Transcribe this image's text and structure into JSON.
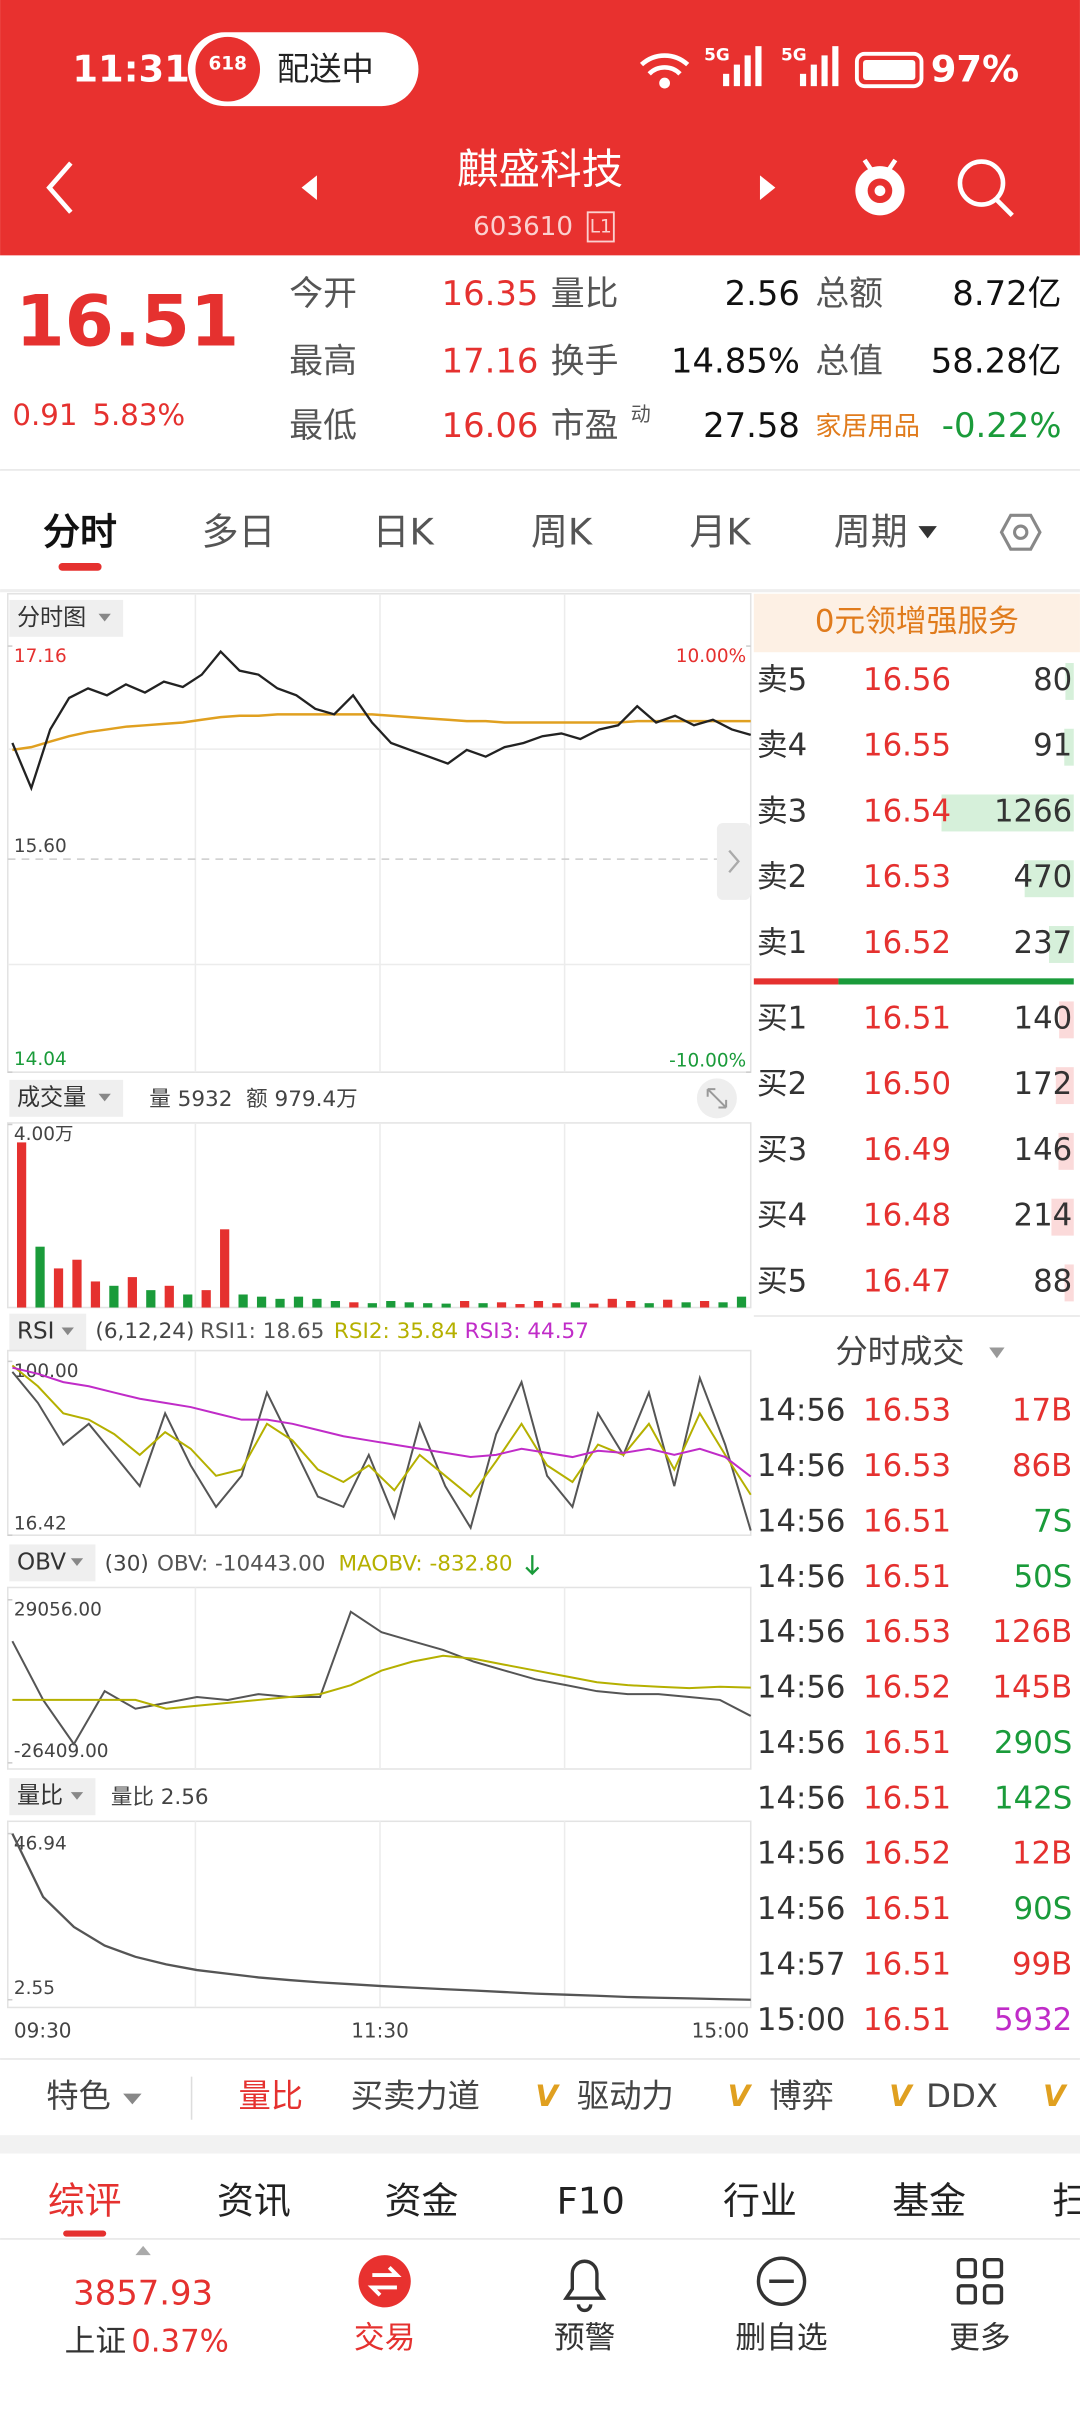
{
  "status_bar": {
    "time": "11:31",
    "badge_icon": "618",
    "badge": "配送中",
    "network": [
      "5G",
      "5G"
    ],
    "battery": "97%"
  },
  "header": {
    "name": "麒盛科技",
    "code": "603610",
    "level": "L1"
  },
  "quote": {
    "price": "16.51",
    "change": "0.91",
    "change_pct": "5.83%",
    "stats": [
      [
        {
          "label": "今开",
          "value": "16.35"
        },
        {
          "label": "量比",
          "value": "2.56"
        },
        {
          "label": "总额",
          "value": "8.72亿"
        }
      ],
      [
        {
          "label": "最高",
          "value": "17.16"
        },
        {
          "label": "换手",
          "value": "14.85%"
        },
        {
          "label": "总值",
          "value": "58.28亿"
        }
      ],
      [
        {
          "label": "最低",
          "value": "16.06"
        },
        {
          "label": "市盈",
          "sup": "动",
          "value": "27.58"
        },
        {
          "label": "家居用品",
          "value": "-0.22%"
        }
      ]
    ]
  },
  "tabs": [
    "分时",
    "多日",
    "日K",
    "周K",
    "月K",
    "周期"
  ],
  "promo": "0元领增强服务",
  "order_book": {
    "asks": [
      {
        "label": "卖5",
        "price": "16.56",
        "volume": 80
      },
      {
        "label": "卖4",
        "price": "16.55",
        "volume": 91
      },
      {
        "label": "卖3",
        "price": "16.54",
        "volume": 1266
      },
      {
        "label": "卖2",
        "price": "16.53",
        "volume": 470
      },
      {
        "label": "卖1",
        "price": "16.52",
        "volume": 237
      }
    ],
    "bids": [
      {
        "label": "买1",
        "price": "16.51",
        "volume": 140
      },
      {
        "label": "买2",
        "price": "16.50",
        "volume": 172
      },
      {
        "label": "买3",
        "price": "16.49",
        "volume": 146
      },
      {
        "label": "买4",
        "price": "16.48",
        "volume": 214
      },
      {
        "label": "买5",
        "price": "16.47",
        "volume": 88
      }
    ]
  },
  "trades": {
    "title": "分时成交",
    "rows": [
      {
        "time": "14:56",
        "price": "16.53",
        "volume": "17B"
      },
      {
        "time": "14:56",
        "price": "16.53",
        "volume": "86B"
      },
      {
        "time": "14:56",
        "price": "16.51",
        "volume": "7S"
      },
      {
        "time": "14:56",
        "price": "16.51",
        "volume": "50S"
      },
      {
        "time": "14:56",
        "price": "16.53",
        "volume": "126B"
      },
      {
        "time": "14:56",
        "price": "16.52",
        "volume": "145B"
      },
      {
        "time": "14:56",
        "price": "16.51",
        "volume": "290S"
      },
      {
        "time": "14:56",
        "price": "16.51",
        "volume": "142S"
      },
      {
        "time": "14:56",
        "price": "16.52",
        "volume": "12B"
      },
      {
        "time": "14:56",
        "price": "16.51",
        "volume": "90S"
      },
      {
        "time": "14:57",
        "price": "16.51",
        "volume": "99B"
      },
      {
        "time": "15:00",
        "price": "16.51",
        "volume": "5932"
      }
    ]
  },
  "intraday": {
    "price": {
      "chip": "分时图",
      "ylim": [
        14.04,
        17.16
      ],
      "yticks": [
        14.04,
        {
          "value": 15.6,
          "label": "15.60"
        },
        17.16
      ],
      "y2lim": [
        -10,
        10
      ],
      "y2ticks": [
        {
          "value": -10,
          "label": "-10.00%"
        },
        {
          "value": 10,
          "label": "10.00%"
        }
      ],
      "values": [
        16.45,
        16.12,
        16.55,
        16.78,
        16.85,
        16.8,
        16.88,
        16.82,
        16.9,
        16.86,
        16.95,
        17.12,
        16.98,
        16.95,
        16.85,
        16.8,
        16.7,
        16.66,
        16.8,
        16.6,
        16.45,
        16.4,
        16.35,
        16.3,
        16.4,
        16.35,
        16.42,
        16.45,
        16.5,
        16.52,
        16.48,
        16.55,
        16.58,
        16.72,
        16.6,
        16.65,
        16.58,
        16.62,
        16.55,
        16.51
      ],
      "avg": [
        16.4,
        16.42,
        16.46,
        16.5,
        16.53,
        16.55,
        16.57,
        16.58,
        16.59,
        16.6,
        16.62,
        16.64,
        16.65,
        16.65,
        16.66,
        16.66,
        16.66,
        16.66,
        16.66,
        16.66,
        16.65,
        16.64,
        16.63,
        16.62,
        16.61,
        16.61,
        16.6,
        16.6,
        16.6,
        16.6,
        16.6,
        16.6,
        16.6,
        16.61,
        16.61,
        16.61,
        16.61,
        16.61,
        16.61,
        16.61
      ]
    },
    "volume": {
      "chip": "成交量",
      "volume_label": "量 5932",
      "amount_label": "额 979.4万",
      "ylim": [
        0,
        40000
      ],
      "yticks": [
        {
          "value": 40000,
          "label": "4.00万"
        }
      ],
      "values": [
        38000,
        14000,
        9000,
        11000,
        6000,
        5000,
        7000,
        4000,
        5000,
        3000,
        4000,
        18000,
        3000,
        2500,
        2000,
        2500,
        2000,
        1500,
        1200,
        1000,
        1500,
        1200,
        1000,
        900,
        1500,
        1000,
        1200,
        800,
        1500,
        1000,
        1200,
        900,
        2000,
        1500,
        1000,
        1800,
        1200,
        1500,
        1200,
        2500
      ]
    },
    "rsi": {
      "chip": "RSI",
      "params": "(6,12,24)",
      "ylim": [
        16.42,
        100
      ],
      "yticks": [
        16.42,
        {
          "value": 100,
          "label": "100.00"
        }
      ],
      "series": [
        {
          "name": "RSI1: 18.65",
          "color": "#555555",
          "values": [
            95,
            80,
            60,
            70,
            55,
            40,
            75,
            50,
            30,
            45,
            85,
            60,
            35,
            30,
            55,
            25,
            70,
            40,
            20,
            65,
            90,
            45,
            30,
            75,
            55,
            85,
            40,
            92,
            60,
            18.65
          ]
        },
        {
          "name": "RSI2: 35.84",
          "color": "#b5b000",
          "values": [
            98,
            88,
            75,
            72,
            65,
            55,
            66,
            58,
            45,
            48,
            70,
            62,
            48,
            42,
            50,
            38,
            55,
            45,
            35,
            52,
            70,
            50,
            42,
            60,
            55,
            70,
            48,
            75,
            55,
            35.84
          ]
        },
        {
          "name": "RSI3: 44.57",
          "color": "#c02cc8",
          "values": [
            97,
            94,
            90,
            88,
            85,
            82,
            80,
            78,
            75,
            72,
            72,
            70,
            67,
            64,
            62,
            60,
            58,
            56,
            54,
            55,
            58,
            56,
            54,
            57,
            56,
            58,
            55,
            58,
            54,
            44.57
          ]
        }
      ]
    },
    "obv": {
      "chip": "OBV",
      "params": "(30)",
      "ylim": [
        -26409,
        29056
      ],
      "yticks": [
        {
          "value": -26409,
          "label": "-26409.00"
        },
        {
          "value": 29056,
          "label": "29056.00"
        }
      ],
      "series": [
        {
          "name": "OBV: -10443.00",
          "color": "#555555",
          "values": [
            15000,
            -5000,
            -20000,
            -2000,
            -8000,
            -6000,
            -4000,
            -5000,
            -3000,
            -4000,
            -4000,
            25000,
            18000,
            15000,
            12000,
            8000,
            5000,
            2000,
            0,
            -2000,
            -3000,
            -3000,
            -4000,
            -5000,
            -10443
          ]
        },
        {
          "name": "MAOBV: -832.80",
          "color": "#b5b000",
          "values": [
            -5000,
            -5000,
            -5000,
            -5000,
            -5000,
            -8000,
            -7000,
            -6000,
            -5000,
            -4000,
            -3000,
            0,
            5000,
            8000,
            10000,
            9000,
            7000,
            5000,
            3000,
            1000,
            0,
            -500,
            -1000,
            -500,
            -832.8
          ]
        }
      ]
    },
    "ratio": {
      "chip": "量比",
      "label": "量比 2.56",
      "ylim": [
        2.55,
        46.94
      ],
      "yticks": [
        2.55,
        46.94
      ],
      "values": [
        46.94,
        30,
        22,
        17,
        14,
        12,
        10.5,
        9.5,
        8.5,
        7.8,
        7.2,
        6.7,
        6.2,
        5.8,
        5.4,
        5,
        4.6,
        4.2,
        3.9,
        3.6,
        3.3,
        3.1,
        2.9,
        2.7,
        2.56
      ]
    },
    "times": [
      "09:30",
      "11:30",
      "15:00"
    ]
  },
  "indicator_bar": {
    "first": "特色",
    "items": [
      "量比",
      "买卖力道",
      "驱动力",
      "博弈",
      "DDX"
    ],
    "vip": "V"
  },
  "bottom_tabs": [
    "综评",
    "资讯",
    "资金",
    "F10",
    "行业",
    "基金",
    "扫"
  ],
  "nav": {
    "index_value": "3857.93",
    "index_name": "上证",
    "index_change": "0.37%",
    "items": [
      "交易",
      "预警",
      "删自选",
      "更多"
    ]
  }
}
